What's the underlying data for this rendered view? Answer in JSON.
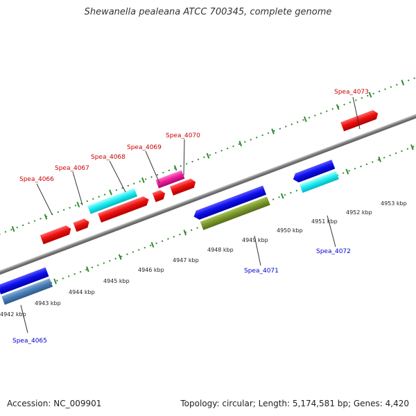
{
  "title": "Shewanella pealeana ATCC 700345, complete genome",
  "footer": {
    "accession": "Accession: NC_009901",
    "summary": "Topology: circular; Length: 5,174,581 bp; Genes: 4,420"
  },
  "colors": {
    "backbone": "#888888",
    "tick": "#2e8b2e",
    "label_red": "#cc0000",
    "label_blue": "#0000cc",
    "leader": "#333333"
  },
  "kbp_labels": [
    "4942 kbp",
    "4943 kbp",
    "4944 kbp",
    "4945 kbp",
    "4946 kbp",
    "4947 kbp",
    "4948 kbp",
    "4949 kbp",
    "4950 kbp",
    "4951 kbp",
    "4952 kbp",
    "4953 kbp"
  ],
  "gene_labels": {
    "spea_4065": "Spea_4065",
    "spea_4066": "Spea_4066",
    "spea_4067": "Spea_4067",
    "spea_4068": "Spea_4068",
    "spea_4069": "Spea_4069",
    "spea_4070": "Spea_4070",
    "spea_4071": "Spea_4071",
    "spea_4072": "Spea_4072",
    "spea_4073": "Spea_4073"
  }
}
